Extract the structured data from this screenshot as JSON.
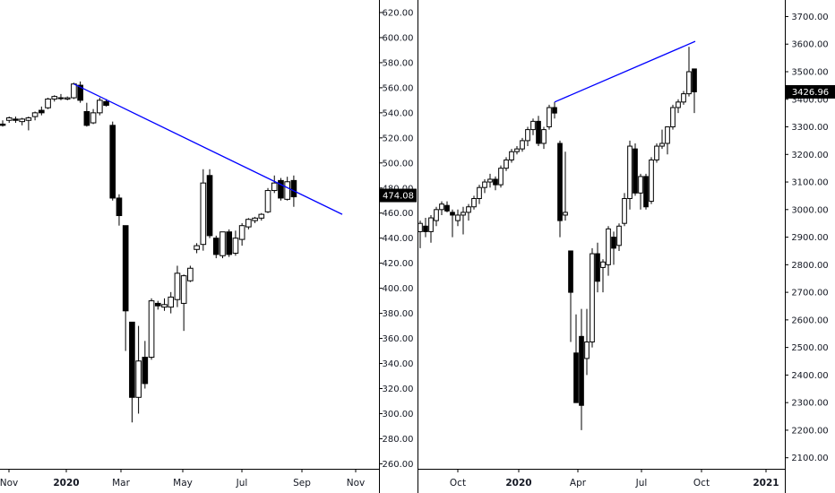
{
  "chart_data": [
    {
      "type": "candlestick",
      "price_scale": "right",
      "x_tick_labels": [
        "Nov",
        "2020",
        "Mar",
        "May",
        "Jul",
        "Sep",
        "Nov"
      ],
      "y_tick_labels": [
        "260.00",
        "280.00",
        "300.00",
        "320.00",
        "340.00",
        "360.00",
        "380.00",
        "400.00",
        "420.00",
        "440.00",
        "460.00",
        "480.00",
        "500.00",
        "520.00",
        "540.00",
        "560.00",
        "580.00",
        "600.00",
        "620.00"
      ],
      "ylim": [
        256,
        630
      ],
      "last_price": "474.08",
      "candles": [
        {
          "o": 531,
          "h": 534,
          "l": 529,
          "c": 530
        },
        {
          "o": 534,
          "h": 537,
          "l": 532,
          "c": 536
        },
        {
          "o": 535,
          "h": 537,
          "l": 532,
          "c": 534
        },
        {
          "o": 533,
          "h": 536,
          "l": 530,
          "c": 535
        },
        {
          "o": 534,
          "h": 537,
          "l": 526,
          "c": 536
        },
        {
          "o": 537,
          "h": 541,
          "l": 534,
          "c": 540
        },
        {
          "o": 542,
          "h": 545,
          "l": 538,
          "c": 540
        },
        {
          "o": 544,
          "h": 552,
          "l": 543,
          "c": 551
        },
        {
          "o": 551,
          "h": 554,
          "l": 549,
          "c": 553
        },
        {
          "o": 552,
          "h": 555,
          "l": 550,
          "c": 552
        },
        {
          "o": 551,
          "h": 553,
          "l": 550,
          "c": 552
        },
        {
          "o": 552,
          "h": 564,
          "l": 551,
          "c": 563
        },
        {
          "o": 562,
          "h": 565,
          "l": 548,
          "c": 550
        },
        {
          "o": 541,
          "h": 548,
          "l": 529,
          "c": 530
        },
        {
          "o": 532,
          "h": 543,
          "l": 531,
          "c": 540
        },
        {
          "o": 540,
          "h": 552,
          "l": 538,
          "c": 550
        },
        {
          "o": 549,
          "h": 551,
          "l": 545,
          "c": 546
        },
        {
          "o": 530,
          "h": 533,
          "l": 470,
          "c": 472
        },
        {
          "o": 472,
          "h": 475,
          "l": 450,
          "c": 458
        },
        {
          "o": 450,
          "h": 450,
          "l": 350,
          "c": 382
        },
        {
          "o": 373,
          "h": 373,
          "l": 293,
          "c": 313
        },
        {
          "o": 313,
          "h": 370,
          "l": 300,
          "c": 342
        },
        {
          "o": 345,
          "h": 358,
          "l": 320,
          "c": 324
        },
        {
          "o": 345,
          "h": 392,
          "l": 343,
          "c": 390
        },
        {
          "o": 388,
          "h": 390,
          "l": 383,
          "c": 386
        },
        {
          "o": 385,
          "h": 392,
          "l": 382,
          "c": 387
        },
        {
          "o": 385,
          "h": 397,
          "l": 380,
          "c": 393
        },
        {
          "o": 391,
          "h": 418,
          "l": 385,
          "c": 412
        },
        {
          "o": 388,
          "h": 411,
          "l": 366,
          "c": 410
        },
        {
          "o": 406,
          "h": 418,
          "l": 405,
          "c": 416
        },
        {
          "o": 431,
          "h": 436,
          "l": 428,
          "c": 434
        },
        {
          "o": 435,
          "h": 495,
          "l": 430,
          "c": 484
        },
        {
          "o": 490,
          "h": 495,
          "l": 440,
          "c": 442
        },
        {
          "o": 440,
          "h": 442,
          "l": 424,
          "c": 427
        },
        {
          "o": 426,
          "h": 445,
          "l": 424,
          "c": 445
        },
        {
          "o": 445,
          "h": 447,
          "l": 425,
          "c": 427
        },
        {
          "o": 428,
          "h": 446,
          "l": 426,
          "c": 440
        },
        {
          "o": 439,
          "h": 452,
          "l": 434,
          "c": 450
        },
        {
          "o": 449,
          "h": 456,
          "l": 447,
          "c": 455
        },
        {
          "o": 454,
          "h": 457,
          "l": 452,
          "c": 456
        },
        {
          "o": 456,
          "h": 460,
          "l": 454,
          "c": 459
        },
        {
          "o": 461,
          "h": 480,
          "l": 460,
          "c": 478
        },
        {
          "o": 478,
          "h": 490,
          "l": 476,
          "c": 484
        },
        {
          "o": 486,
          "h": 488,
          "l": 470,
          "c": 472
        },
        {
          "o": 471,
          "h": 489,
          "l": 470,
          "c": 485
        },
        {
          "o": 486,
          "h": 490,
          "l": 465,
          "c": 473
        }
      ],
      "trendline": [
        {
          "ref": "c0",
          "price": 563
        },
        {
          "ref": "c46",
          "price": 459
        }
      ]
    },
    {
      "type": "candlestick",
      "price_scale": "right",
      "x_tick_labels": [
        "Oct",
        "2020",
        "Apr",
        "Jul",
        "Oct",
        "2021"
      ],
      "y_tick_labels": [
        "2100.00",
        "2200.00",
        "2300.00",
        "2400.00",
        "2500.00",
        "2600.00",
        "2700.00",
        "2800.00",
        "2900.00",
        "3000.00",
        "3100.00",
        "3200.00",
        "3300.00",
        "3400.00",
        "3500.00",
        "3600.00",
        "3700.00"
      ],
      "ylim": [
        2060,
        3760
      ],
      "last_price": "3426.96",
      "candles": [
        {
          "o": 2920,
          "h": 2960,
          "l": 2860,
          "c": 2950
        },
        {
          "o": 2940,
          "h": 2970,
          "l": 2900,
          "c": 2920
        },
        {
          "o": 2920,
          "h": 2980,
          "l": 2880,
          "c": 2970
        },
        {
          "o": 2960,
          "h": 3010,
          "l": 2940,
          "c": 3000
        },
        {
          "o": 3000,
          "h": 3030,
          "l": 2980,
          "c": 3020
        },
        {
          "o": 3015,
          "h": 3030,
          "l": 2990,
          "c": 2995
        },
        {
          "o": 2990,
          "h": 3000,
          "l": 2900,
          "c": 2980
        },
        {
          "o": 2960,
          "h": 3000,
          "l": 2940,
          "c": 2980
        },
        {
          "o": 2980,
          "h": 3010,
          "l": 2910,
          "c": 2990
        },
        {
          "o": 2990,
          "h": 3020,
          "l": 2960,
          "c": 3010
        },
        {
          "o": 3010,
          "h": 3050,
          "l": 3000,
          "c": 3040
        },
        {
          "o": 3040,
          "h": 3090,
          "l": 3020,
          "c": 3080
        },
        {
          "o": 3080,
          "h": 3110,
          "l": 3060,
          "c": 3100
        },
        {
          "o": 3100,
          "h": 3130,
          "l": 3080,
          "c": 3110
        },
        {
          "o": 3110,
          "h": 3120,
          "l": 3070,
          "c": 3090
        },
        {
          "o": 3090,
          "h": 3160,
          "l": 3080,
          "c": 3150
        },
        {
          "o": 3150,
          "h": 3190,
          "l": 3140,
          "c": 3180
        },
        {
          "o": 3180,
          "h": 3220,
          "l": 3170,
          "c": 3210
        },
        {
          "o": 3210,
          "h": 3230,
          "l": 3200,
          "c": 3220
        },
        {
          "o": 3220,
          "h": 3260,
          "l": 3210,
          "c": 3250
        },
        {
          "o": 3250,
          "h": 3300,
          "l": 3230,
          "c": 3290
        },
        {
          "o": 3290,
          "h": 3330,
          "l": 3270,
          "c": 3320
        },
        {
          "o": 3320,
          "h": 3340,
          "l": 3230,
          "c": 3240
        },
        {
          "o": 3240,
          "h": 3300,
          "l": 3220,
          "c": 3290
        },
        {
          "o": 3300,
          "h": 3380,
          "l": 3290,
          "c": 3370
        },
        {
          "o": 3370,
          "h": 3390,
          "l": 3330,
          "c": 3350
        },
        {
          "o": 3240,
          "h": 3250,
          "l": 2900,
          "c": 2960
        },
        {
          "o": 2980,
          "h": 3210,
          "l": 2960,
          "c": 2990
        },
        {
          "o": 2850,
          "h": 2850,
          "l": 2520,
          "c": 2700
        },
        {
          "o": 2480,
          "h": 2620,
          "l": 2300,
          "c": 2300
        },
        {
          "o": 2540,
          "h": 2640,
          "l": 2200,
          "c": 2290
        },
        {
          "o": 2460,
          "h": 2640,
          "l": 2400,
          "c": 2520
        },
        {
          "o": 2520,
          "h": 2860,
          "l": 2500,
          "c": 2840
        },
        {
          "o": 2840,
          "h": 2880,
          "l": 2700,
          "c": 2740
        },
        {
          "o": 2790,
          "h": 2820,
          "l": 2700,
          "c": 2810
        },
        {
          "o": 2800,
          "h": 2940,
          "l": 2760,
          "c": 2930
        },
        {
          "o": 2900,
          "h": 2920,
          "l": 2800,
          "c": 2860
        },
        {
          "o": 2870,
          "h": 2950,
          "l": 2850,
          "c": 2940
        },
        {
          "o": 2950,
          "h": 3060,
          "l": 2940,
          "c": 3040
        },
        {
          "o": 3040,
          "h": 3250,
          "l": 3000,
          "c": 3230
        },
        {
          "o": 3220,
          "h": 3240,
          "l": 3050,
          "c": 3060
        },
        {
          "o": 3060,
          "h": 3130,
          "l": 3000,
          "c": 3120
        },
        {
          "o": 3120,
          "h": 3130,
          "l": 3000,
          "c": 3010
        },
        {
          "o": 3030,
          "h": 3190,
          "l": 3020,
          "c": 3180
        },
        {
          "o": 3180,
          "h": 3240,
          "l": 3170,
          "c": 3230
        },
        {
          "o": 3230,
          "h": 3290,
          "l": 3220,
          "c": 3240
        },
        {
          "o": 3240,
          "h": 3300,
          "l": 3200,
          "c": 3300
        },
        {
          "o": 3300,
          "h": 3380,
          "l": 3290,
          "c": 3370
        },
        {
          "o": 3370,
          "h": 3400,
          "l": 3350,
          "c": 3390
        },
        {
          "o": 3390,
          "h": 3430,
          "l": 3380,
          "c": 3420
        },
        {
          "o": 3420,
          "h": 3590,
          "l": 3410,
          "c": 3500
        },
        {
          "o": 3510,
          "h": 3510,
          "l": 3350,
          "c": 3427
        }
      ],
      "trendline": [
        {
          "ref": "c0",
          "price": 3390
        },
        {
          "ref": "c56",
          "price": 3610
        }
      ]
    }
  ],
  "colors": {
    "background": "#ffffff",
    "candle": "#000000",
    "trendline": "#0000ff",
    "axis_text": "#131722",
    "price_tag_bg": "#000000",
    "price_tag_text": "#ffffff",
    "pane_separator": "#000000"
  }
}
